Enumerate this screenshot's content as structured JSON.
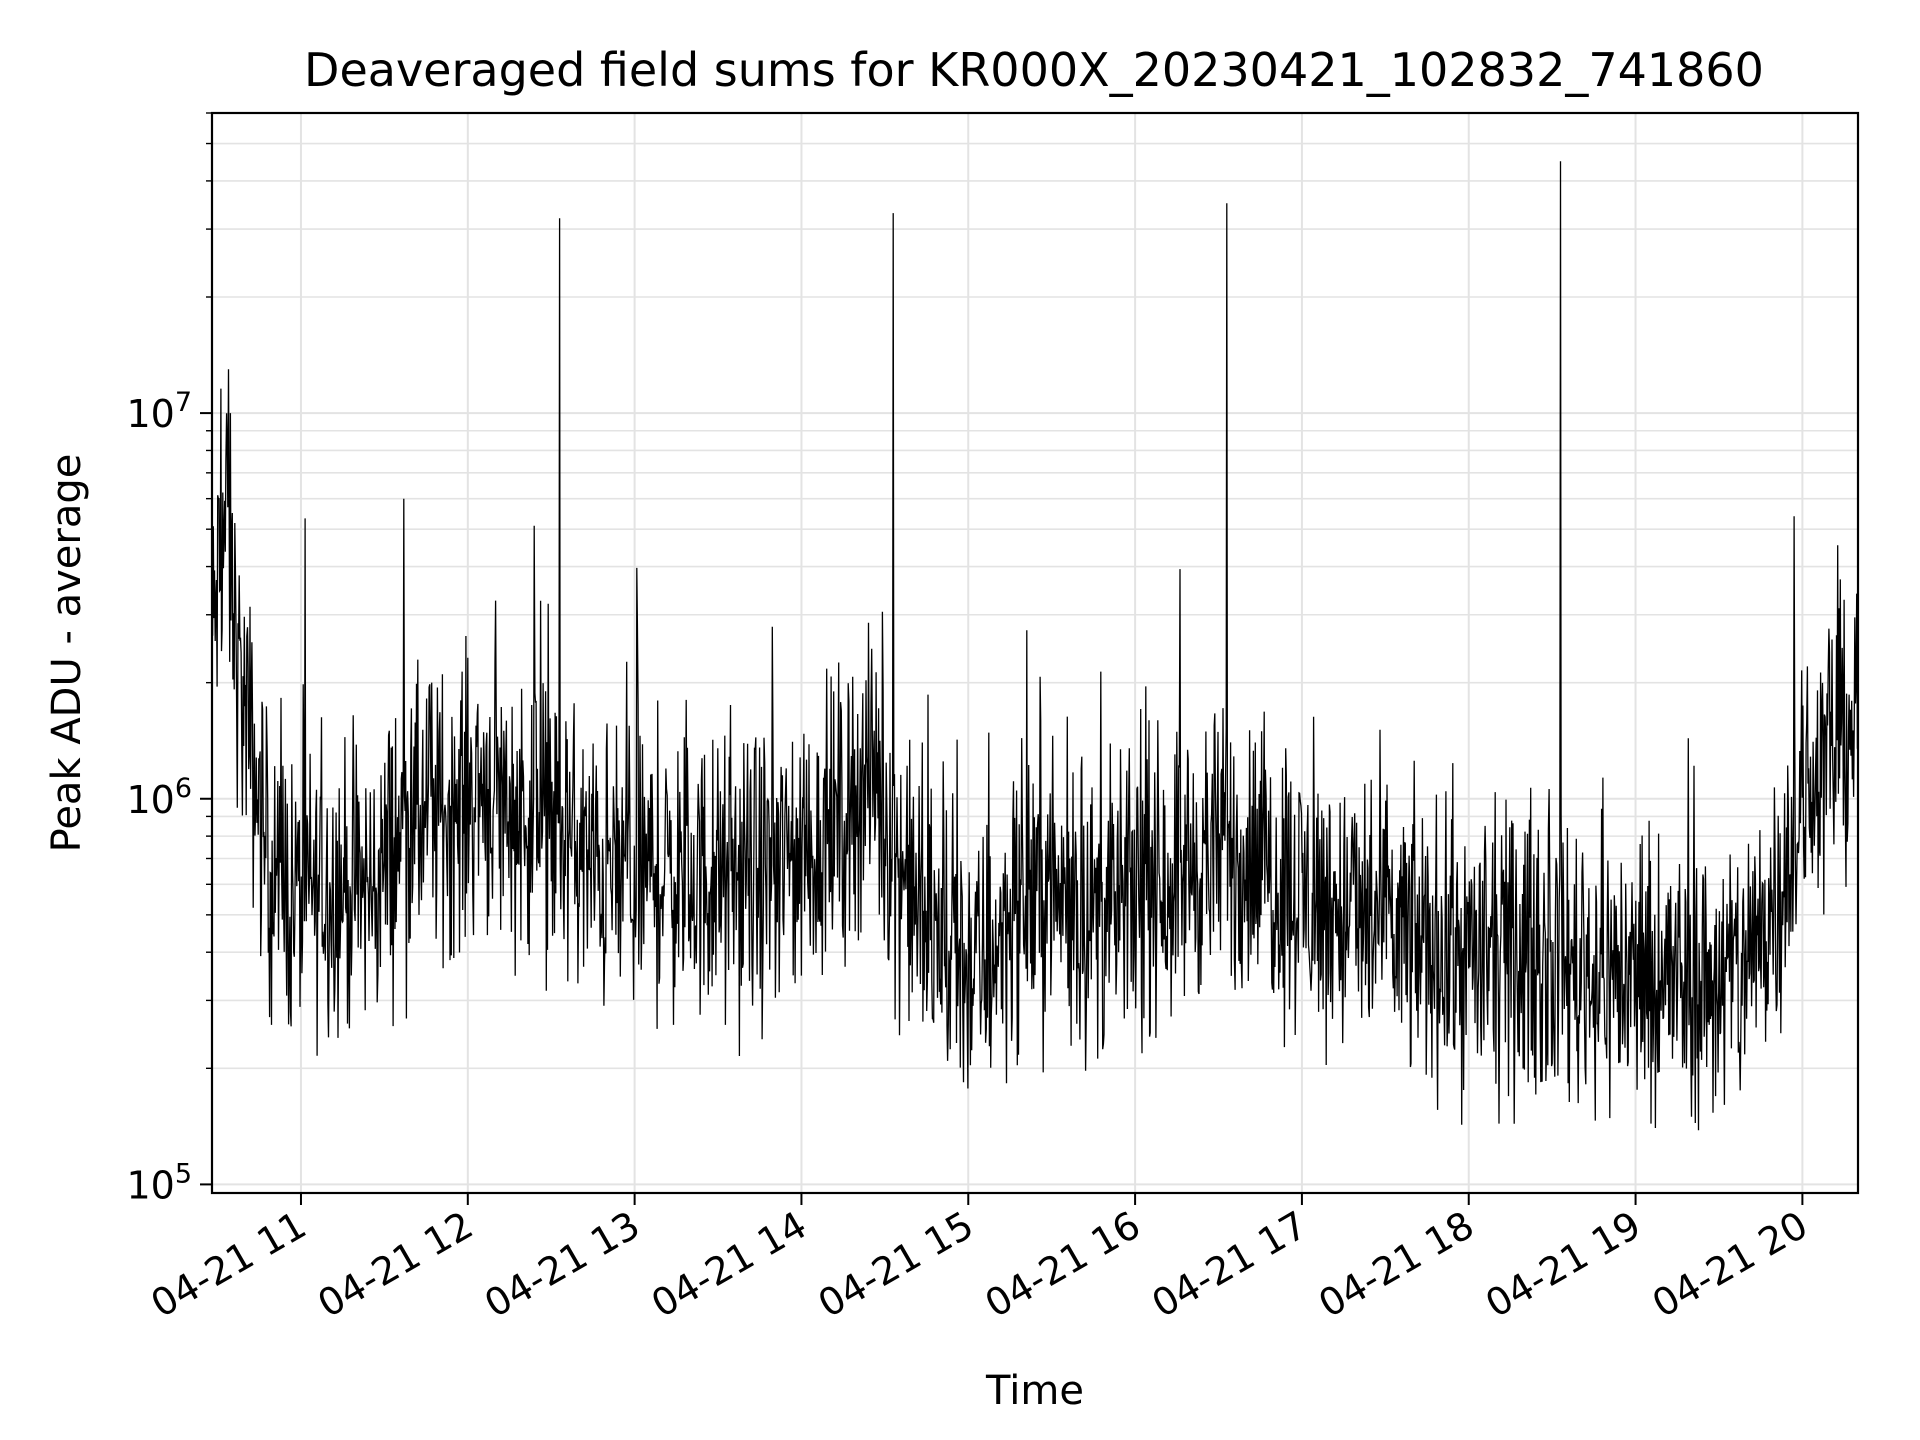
{
  "chart_data": {
    "type": "line",
    "title": "Deaveraged field sums for KR000X_20230421_102832_741860",
    "xlabel": "Time",
    "ylabel": "Peak ADU - average",
    "yscale": "log",
    "ylim": [
      95000,
      60000000
    ],
    "xlim": [
      "2023-04-21 10:28",
      "2023-04-21 20:20"
    ],
    "grid": true,
    "line_color": "#000000",
    "x_ticks": [
      {
        "t": "2023-04-21 11:00",
        "label": "04-21 11"
      },
      {
        "t": "2023-04-21 12:00",
        "label": "04-21 12"
      },
      {
        "t": "2023-04-21 13:00",
        "label": "04-21 13"
      },
      {
        "t": "2023-04-21 14:00",
        "label": "04-21 14"
      },
      {
        "t": "2023-04-21 15:00",
        "label": "04-21 15"
      },
      {
        "t": "2023-04-21 16:00",
        "label": "04-21 16"
      },
      {
        "t": "2023-04-21 17:00",
        "label": "04-21 17"
      },
      {
        "t": "2023-04-21 18:00",
        "label": "04-21 18"
      },
      {
        "t": "2023-04-21 19:00",
        "label": "04-21 19"
      },
      {
        "t": "2023-04-21 20:00",
        "label": "04-21 20"
      }
    ],
    "y_ticks": [
      {
        "value": 100000,
        "base": "10",
        "exp": "5"
      },
      {
        "value": 1000000,
        "base": "10",
        "exp": "6"
      },
      {
        "value": 10000000,
        "base": "10",
        "exp": "7"
      }
    ],
    "series": [
      {
        "points": [
          [
            "2023-04-21 10:28",
            2500000
          ],
          [
            "2023-04-21 10:33",
            5500000
          ],
          [
            "2023-04-21 10:38",
            2000000
          ],
          [
            "2023-04-21 10:43",
            1200000
          ],
          [
            "2023-04-21 10:48",
            700000
          ],
          [
            "2023-04-21 10:53",
            600000
          ],
          [
            "2023-04-21 10:58",
            550000
          ],
          [
            "2023-04-21 11:05",
            580000
          ],
          [
            "2023-04-21 11:15",
            600000
          ],
          [
            "2023-04-21 11:25",
            570000
          ],
          [
            "2023-04-21 11:35",
            800000
          ],
          [
            "2023-04-21 11:45",
            900000
          ],
          [
            "2023-04-21 11:55",
            950000
          ],
          [
            "2023-04-21 12:05",
            1100000
          ],
          [
            "2023-04-21 12:15",
            950000
          ],
          [
            "2023-04-21 12:25",
            900000
          ],
          [
            "2023-04-21 12:35",
            800000
          ],
          [
            "2023-04-21 12:45",
            650000
          ],
          [
            "2023-04-21 12:55",
            640000
          ],
          [
            "2023-04-21 13:05",
            650000
          ],
          [
            "2023-04-21 13:20",
            620000
          ],
          [
            "2023-04-21 13:35",
            600000
          ],
          [
            "2023-04-21 13:50",
            650000
          ],
          [
            "2023-04-21 14:05",
            750000
          ],
          [
            "2023-04-21 14:15",
            900000
          ],
          [
            "2023-04-21 14:25",
            1200000
          ],
          [
            "2023-04-21 14:35",
            700000
          ],
          [
            "2023-04-21 14:45",
            450000
          ],
          [
            "2023-04-21 14:55",
            380000
          ],
          [
            "2023-04-21 15:05",
            360000
          ],
          [
            "2023-04-21 15:15",
            500000
          ],
          [
            "2023-04-21 15:25",
            600000
          ],
          [
            "2023-04-21 15:35",
            550000
          ],
          [
            "2023-04-21 15:45",
            500000
          ],
          [
            "2023-04-21 15:55",
            520000
          ],
          [
            "2023-04-21 16:05",
            600000
          ],
          [
            "2023-04-21 16:15",
            650000
          ],
          [
            "2023-04-21 16:25",
            700000
          ],
          [
            "2023-04-21 16:35",
            720000
          ],
          [
            "2023-04-21 16:45",
            680000
          ],
          [
            "2023-04-21 16:55",
            600000
          ],
          [
            "2023-04-21 17:10",
            520000
          ],
          [
            "2023-04-21 17:25",
            480000
          ],
          [
            "2023-04-21 17:40",
            430000
          ],
          [
            "2023-04-21 17:55",
            400000
          ],
          [
            "2023-04-21 18:10",
            380000
          ],
          [
            "2023-04-21 18:25",
            390000
          ],
          [
            "2023-04-21 18:40",
            370000
          ],
          [
            "2023-04-21 18:55",
            350000
          ],
          [
            "2023-04-21 19:10",
            340000
          ],
          [
            "2023-04-21 19:25",
            330000
          ],
          [
            "2023-04-21 19:40",
            360000
          ],
          [
            "2023-04-21 19:55",
            700000
          ],
          [
            "2023-04-21 20:05",
            1200000
          ],
          [
            "2023-04-21 20:20",
            1700000
          ]
        ],
        "spikes": [
          [
            "2023-04-21 12:33",
            32000000
          ],
          [
            "2023-04-21 14:33",
            33000000
          ],
          [
            "2023-04-21 16:33",
            35000000
          ],
          [
            "2023-04-21 18:33",
            45000000
          ],
          [
            "2023-04-21 10:34",
            13000000
          ],
          [
            "2023-04-21 11:37",
            6000000
          ],
          [
            "2023-04-21 19:57",
            5400000
          ]
        ]
      }
    ]
  }
}
